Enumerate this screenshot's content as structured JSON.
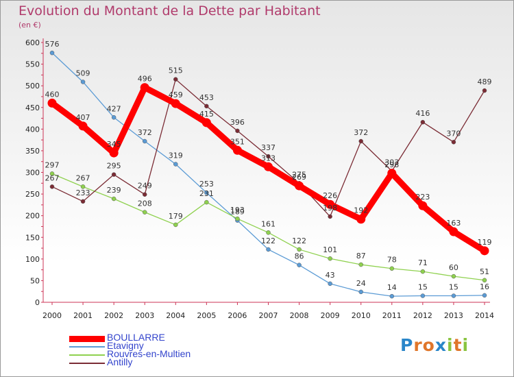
{
  "logo": {
    "letters": [
      {
        "char": "P",
        "color": "#2a86c9"
      },
      {
        "char": "r",
        "color": "#e0762a"
      },
      {
        "char": "o",
        "color": "#e0762a"
      },
      {
        "char": "x",
        "color": "#2a86c9"
      },
      {
        "char": "i",
        "color": "#8ac43f"
      },
      {
        "char": "t",
        "color": "#e0762a"
      },
      {
        "char": "i",
        "color": "#8ac43f"
      }
    ]
  },
  "chart_data": {
    "type": "line",
    "title": "Evolution du Montant de la Dette par Habitant",
    "subtitle": "(en €)",
    "xlabel": "",
    "ylabel": "",
    "ylim": [
      0,
      600
    ],
    "yticks": [
      0,
      50,
      100,
      150,
      200,
      250,
      300,
      350,
      400,
      450,
      500,
      550,
      600
    ],
    "grid": false,
    "legend_position": "bottom-left",
    "categories": [
      "2000",
      "2001",
      "2002",
      "2003",
      "2004",
      "2005",
      "2006",
      "2007",
      "2008",
      "2009",
      "2010",
      "2011",
      "2012",
      "2013",
      "2014"
    ],
    "series": [
      {
        "name": "BOULLARRE",
        "color": "#ff0000",
        "highlight": true,
        "values": [
          460,
          407,
          345,
          496,
          459,
          415,
          351,
          313,
          269,
          226,
          192,
          298,
          223,
          163,
          119
        ]
      },
      {
        "name": "Etavigny",
        "color": "#5b9bd5",
        "highlight": false,
        "values": [
          576,
          509,
          427,
          372,
          319,
          253,
          189,
          122,
          86,
          43,
          24,
          14,
          15,
          15,
          16
        ]
      },
      {
        "name": "Rouvres-en-Multien",
        "color": "#8fd14f",
        "highlight": false,
        "values": [
          297,
          267,
          239,
          208,
          179,
          231,
          193,
          161,
          122,
          101,
          87,
          78,
          71,
          60,
          51
        ]
      },
      {
        "name": "Antilly",
        "color": "#7b2c35",
        "highlight": false,
        "values": [
          267,
          233,
          295,
          249,
          515,
          453,
          396,
          337,
          275,
          198,
          372,
          303,
          416,
          370,
          489
        ]
      }
    ]
  }
}
